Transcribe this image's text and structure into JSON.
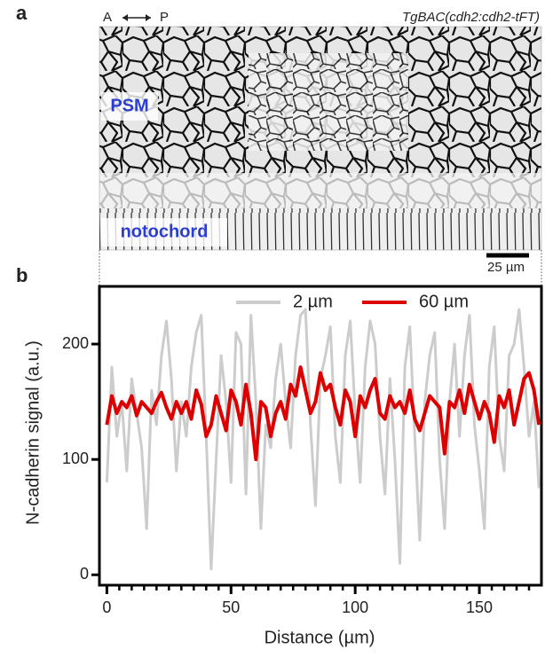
{
  "panels": {
    "a": "a",
    "b": "b"
  },
  "image": {
    "axis_left": "A",
    "axis_right": "P",
    "line": "TgBAC(cdh2:cdh2-tFT)",
    "region_top": "PSM",
    "region_bottom": "notochord",
    "scale_bar": "25 µm"
  },
  "chart_data": {
    "type": "line",
    "x_label": "Distance (µm)",
    "y_label": "N-cadherin signal (a.u.)",
    "x": [
      0,
      2,
      4,
      6,
      8,
      10,
      12,
      14,
      16,
      18,
      20,
      22,
      24,
      26,
      28,
      30,
      32,
      34,
      36,
      38,
      40,
      42,
      44,
      46,
      48,
      50,
      52,
      54,
      56,
      58,
      60,
      62,
      64,
      66,
      68,
      70,
      72,
      74,
      76,
      78,
      80,
      82,
      84,
      86,
      88,
      90,
      92,
      94,
      96,
      98,
      100,
      102,
      104,
      106,
      108,
      110,
      112,
      114,
      116,
      118,
      120,
      122,
      124,
      126,
      128,
      130,
      132,
      134,
      136,
      138,
      140,
      142,
      144,
      146,
      148,
      150,
      152,
      154,
      156,
      158,
      160,
      162,
      164,
      166,
      168,
      170,
      172,
      174
    ],
    "series": [
      {
        "name": "2 µm",
        "color": "#cccccc",
        "values": [
          80,
          180,
          120,
          150,
          90,
          170,
          140,
          110,
          40,
          160,
          130,
          190,
          220,
          170,
          90,
          150,
          120,
          180,
          210,
          225,
          120,
          5,
          100,
          190,
          150,
          80,
          210,
          200,
          70,
          225,
          150,
          40,
          130,
          110,
          170,
          200,
          150,
          110,
          190,
          225,
          230,
          130,
          60,
          170,
          190,
          215,
          120,
          80,
          190,
          220,
          140,
          80,
          180,
          220,
          200,
          120,
          70,
          170,
          100,
          10,
          180,
          215,
          120,
          30,
          150,
          190,
          210,
          100,
          40,
          150,
          200,
          120,
          190,
          225,
          130,
          90,
          40,
          180,
          215,
          120,
          90,
          190,
          200,
          230,
          180,
          120,
          150,
          75
        ]
      },
      {
        "name": "60 µm",
        "color": "#dd0000",
        "values": [
          130,
          155,
          140,
          150,
          145,
          155,
          138,
          150,
          145,
          140,
          150,
          158,
          145,
          135,
          150,
          140,
          150,
          135,
          160,
          148,
          120,
          130,
          155,
          140,
          125,
          160,
          150,
          130,
          165,
          140,
          100,
          150,
          145,
          120,
          140,
          150,
          135,
          165,
          155,
          180,
          160,
          140,
          150,
          175,
          160,
          165,
          145,
          130,
          160,
          150,
          120,
          155,
          145,
          160,
          170,
          140,
          135,
          155,
          145,
          150,
          140,
          160,
          135,
          125,
          140,
          155,
          150,
          145,
          105,
          150,
          145,
          160,
          140,
          165,
          150,
          135,
          150,
          140,
          115,
          155,
          145,
          160,
          130,
          150,
          170,
          175,
          160,
          130
        ]
      }
    ],
    "xlim": [
      -3,
      175
    ],
    "ylim": [
      -9,
      250
    ],
    "xticks": [
      0,
      50,
      100,
      150
    ],
    "xminorticks": [
      5,
      10,
      15,
      20,
      25,
      30,
      35,
      40,
      45,
      55,
      60,
      65,
      70,
      75,
      80,
      85,
      90,
      95,
      105,
      110,
      115,
      120,
      125,
      130,
      135,
      140,
      145,
      155,
      160,
      165,
      170
    ],
    "yticks": [
      0,
      100,
      200
    ],
    "legend": "upper center"
  }
}
